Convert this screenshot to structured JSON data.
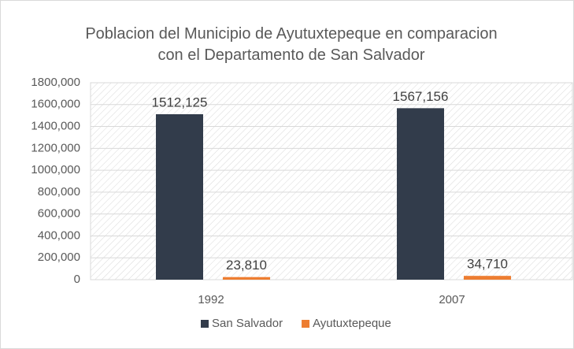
{
  "chart_data": {
    "type": "bar",
    "title": "Poblacion del Municipio de Ayutuxtepeque en comparacion con el Departamento de San Salvador",
    "categories": [
      "1992",
      "2007"
    ],
    "series": [
      {
        "name": "San Salvador",
        "color": "#323c4b",
        "values": [
          1512125,
          1567156
        ],
        "value_labels": [
          "1512,125",
          "1567,156"
        ]
      },
      {
        "name": "Ayutuxtepeque",
        "color": "#ed7d31",
        "values": [
          23810,
          34710
        ],
        "value_labels": [
          "23,810",
          "34,710"
        ]
      }
    ],
    "ylim": [
      0,
      1800000
    ],
    "yticks": [
      0,
      {
        "value": 200000,
        "label": "200,000"
      },
      {
        "value": 400000,
        "label": "400,000"
      },
      {
        "value": 600000,
        "label": "600,000"
      },
      {
        "value": 800000,
        "label": "800,000"
      },
      {
        "value": 1000000,
        "label": "1000,000"
      },
      {
        "value": 1200000,
        "label": "1200,000"
      },
      {
        "value": 1400000,
        "label": "1400,000"
      },
      {
        "value": 1600000,
        "label": "1600,000"
      },
      {
        "value": 1800000,
        "label": "1800,000"
      }
    ],
    "grid": true,
    "legend": "bottom"
  }
}
